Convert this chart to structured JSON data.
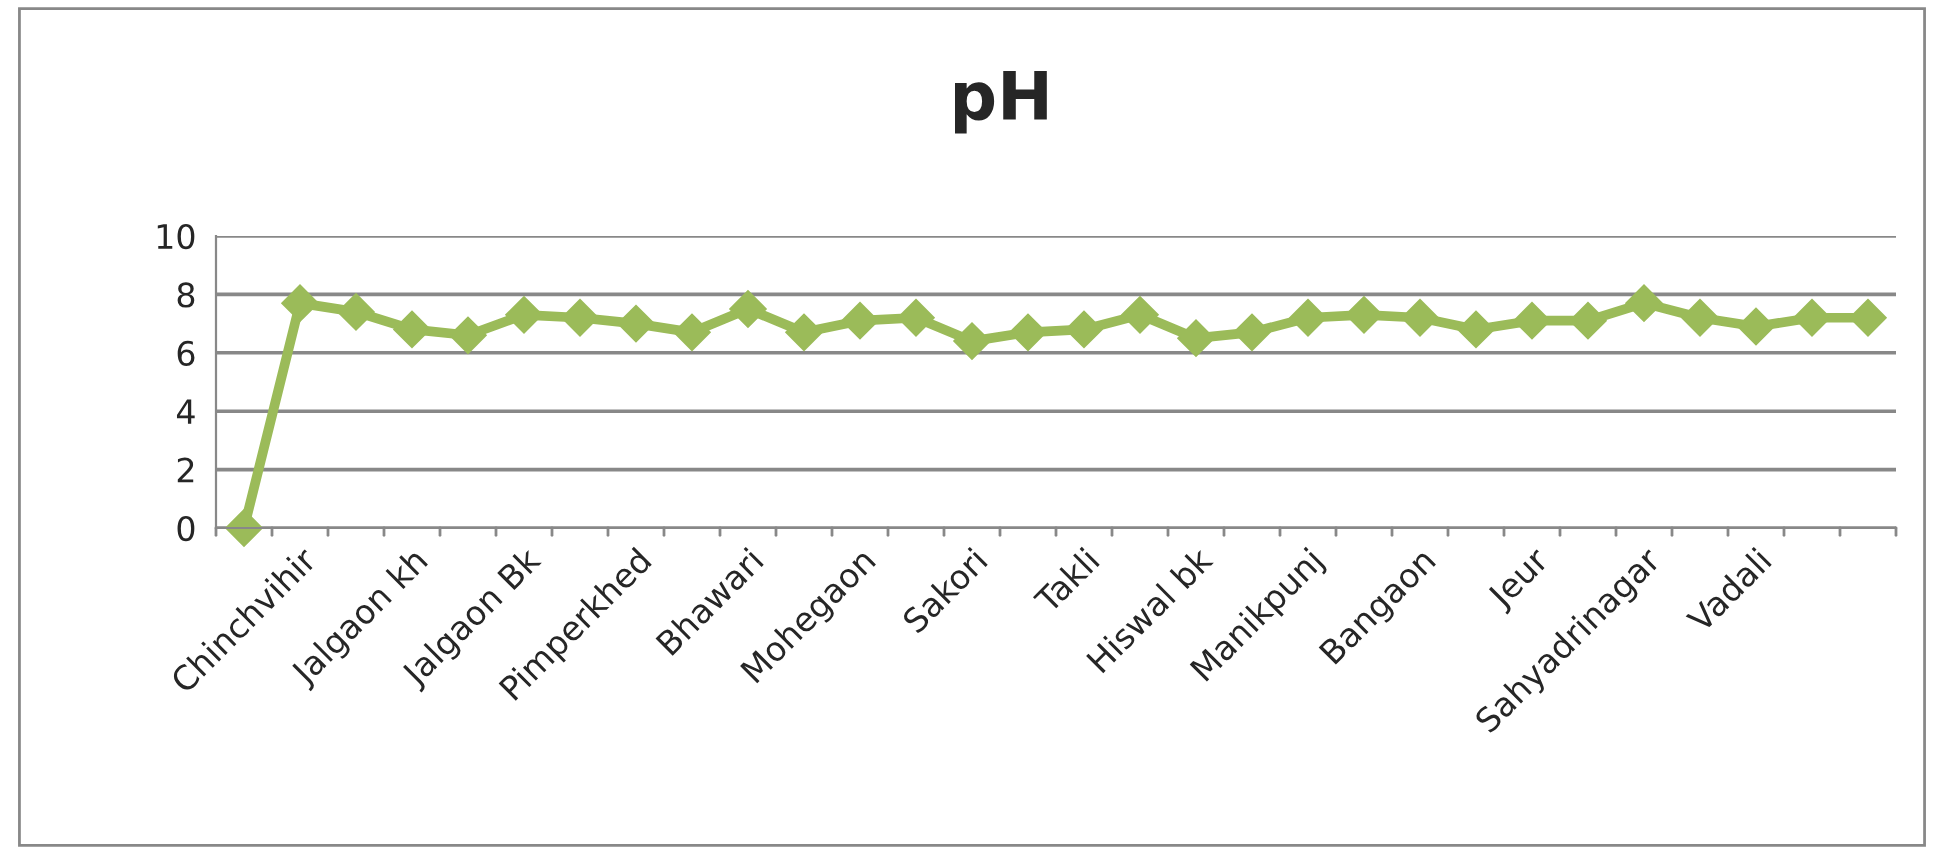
{
  "chart_data": {
    "type": "line",
    "title": "pH",
    "categories": [
      null,
      "Chinchvihir",
      null,
      "Jalgaon kh",
      null,
      "Jalgaon Bk",
      null,
      "Pimperkhed",
      null,
      "Bhawari",
      null,
      "Mohegaon",
      null,
      "Sakori",
      null,
      "Takli",
      null,
      "Hiswal bk",
      null,
      "Manikpunj",
      null,
      "Bangaon",
      null,
      "Jeur",
      null,
      "Sahyadrinagar",
      null,
      "Vadali",
      null,
      null
    ],
    "series": [
      {
        "color": "#9bbb59",
        "values": [
          0,
          7.7,
          7.4,
          6.8,
          6.6,
          7.3,
          7.2,
          7.0,
          6.7,
          7.5,
          6.7,
          7.1,
          7.2,
          6.4,
          6.7,
          6.8,
          7.3,
          6.5,
          6.7,
          7.2,
          7.3,
          7.2,
          6.8,
          7.1,
          7.1,
          7.7,
          7.2,
          6.9,
          7.2,
          7.2
        ]
      }
    ],
    "ylim": [
      0,
      10
    ],
    "yticks": [
      0,
      2,
      4,
      6,
      8,
      10
    ],
    "grid": "y",
    "legend": false,
    "marker": "diamond",
    "line_style": "solid"
  }
}
